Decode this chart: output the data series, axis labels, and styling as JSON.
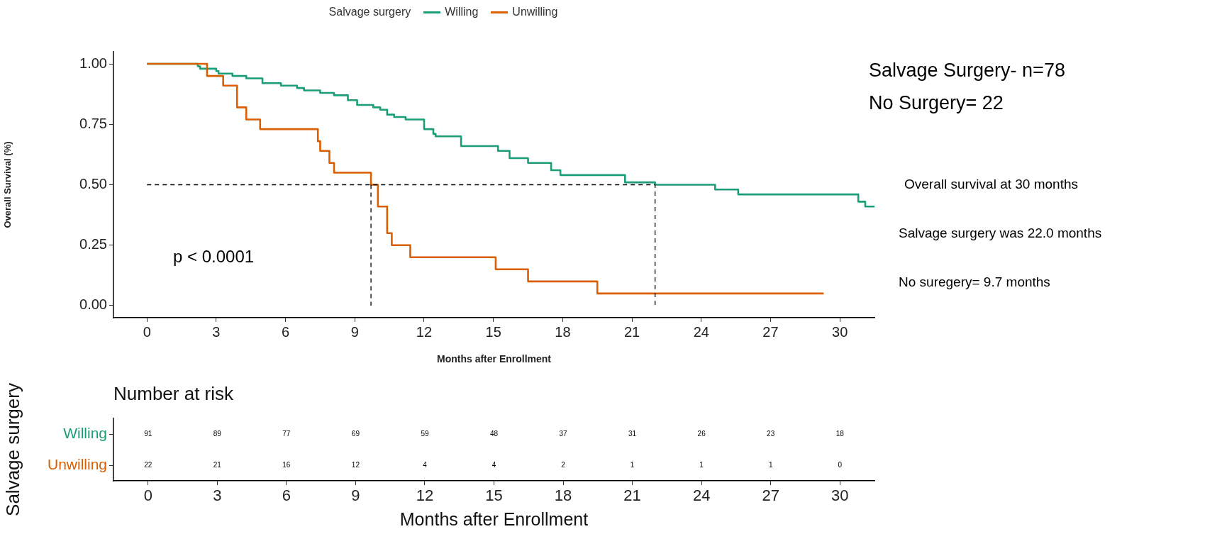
{
  "chart_data": [
    {
      "type": "step",
      "xlabel": "Months after Enrollment",
      "ylabel": "Overall Survival (%)",
      "legend_title": "Salvage surgery",
      "legend": "top",
      "xlim": [
        -1.45,
        31.5
      ],
      "xticks": [
        0,
        3,
        6,
        9,
        12,
        15,
        18,
        21,
        24,
        27,
        30
      ],
      "ylim": [
        -0.05,
        1.05
      ],
      "yticks": [
        {
          "value": 0,
          "label": "0.00"
        },
        {
          "value": 0.25,
          "label": "0.25"
        },
        {
          "value": 0.5,
          "label": "0.50"
        },
        {
          "value": 0.75,
          "label": "0.75"
        },
        {
          "value": 1,
          "label": "1.00"
        }
      ],
      "series": [
        {
          "name": "Willing",
          "color": "#1b9e77",
          "x": [
            0,
            2.2,
            2.3,
            3.0,
            3.1,
            3.7,
            4.3,
            5.0,
            5.8,
            6.5,
            6.8,
            7.5,
            8.1,
            8.7,
            9.1,
            9.8,
            10.1,
            10.4,
            10.7,
            11.2,
            12.0,
            12.4,
            12.5,
            13.6,
            15.2,
            15.7,
            16.5,
            17.5,
            17.9,
            20.7,
            22.0,
            24.6,
            25.6,
            30.8,
            31.1,
            31.5
          ],
          "values": [
            1,
            0.99,
            0.98,
            0.97,
            0.96,
            0.95,
            0.94,
            0.92,
            0.91,
            0.9,
            0.89,
            0.88,
            0.87,
            0.85,
            0.83,
            0.82,
            0.81,
            0.79,
            0.78,
            0.77,
            0.73,
            0.71,
            0.7,
            0.66,
            0.64,
            0.61,
            0.59,
            0.56,
            0.54,
            0.51,
            0.5,
            0.48,
            0.46,
            0.43,
            0.41,
            0.41
          ]
        },
        {
          "name": "Unwilling",
          "color": "#d95f02",
          "x": [
            0,
            2.6,
            3.3,
            3.9,
            4.3,
            4.9,
            7.4,
            7.5,
            7.9,
            8.1,
            9.7,
            10.0,
            10.4,
            10.6,
            11.4,
            15.1,
            16.5,
            19.5,
            29.3
          ],
          "values": [
            1,
            0.95,
            0.91,
            0.82,
            0.77,
            0.73,
            0.68,
            0.64,
            0.59,
            0.55,
            0.5,
            0.41,
            0.3,
            0.25,
            0.2,
            0.15,
            0.1,
            0.05,
            0.05
          ]
        },
        {
          "type": "line",
          "color": "#000000",
          "line_style": "dashed",
          "x": [
            0,
            22.0,
            22.0
          ],
          "values": [
            0.5,
            0.5,
            0
          ]
        },
        {
          "type": "line",
          "color": "#000000",
          "line_style": "dashed",
          "x": [
            9.7,
            9.7
          ],
          "values": [
            0.5,
            0
          ]
        }
      ],
      "annotations": [
        "p < 0.0001",
        "Salvage Surgery- n=78",
        "No Surgery= 22",
        "Overall survival at 30 months",
        "Salvage surgery was 22.0 months",
        "No suregery= 9.7 months"
      ]
    },
    {
      "type": "heatmap",
      "title": "Number at risk",
      "xlabel": "Months after Enrollment",
      "ylabel": "Salvage surgery",
      "categories": [
        "0",
        "3",
        "6",
        "9",
        "12",
        "15",
        "18",
        "21",
        "24",
        "27",
        "30"
      ],
      "y_categories": [
        "Willing",
        "Unwilling"
      ],
      "data_labels": true,
      "cells": [
        [
          91,
          89,
          77,
          69,
          59,
          48,
          37,
          31,
          26,
          23,
          18
        ],
        [
          22,
          21,
          16,
          12,
          4,
          4,
          2,
          1,
          1,
          1,
          0
        ]
      ]
    }
  ]
}
